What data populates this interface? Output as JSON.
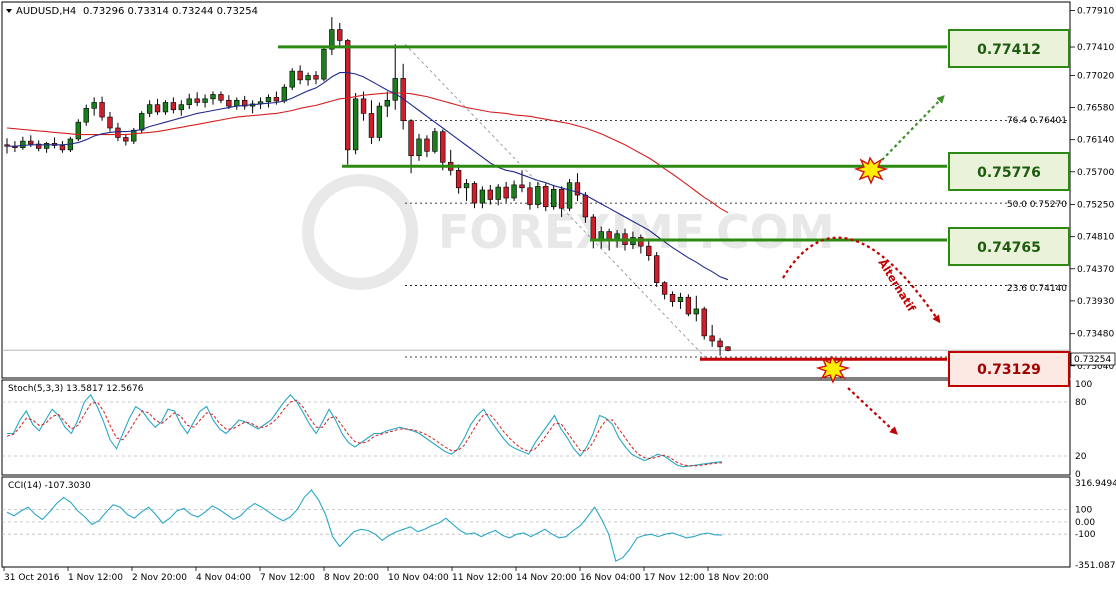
{
  "header": {
    "symbol": "AUDUSD,H4",
    "ohlc": "0.73296 0.73314 0.73244 0.73254"
  },
  "watermark": "FOREXIMF.COM",
  "current_price_label": "0.73254",
  "stoch_label": "Stoch(5,3,3) 13.5817 12.5676",
  "cci_label": "CCI(14) -107.3030",
  "fib_labels": {
    "f764": "76.4 0.76401",
    "f500": "50.0 0.75270",
    "f236": "23.6 0.74140"
  },
  "alternatif_label": "Alternatif",
  "colors": {
    "bull": "#1a7f1a",
    "bear": "#cc1e2b",
    "level_green": "#2c8a12",
    "level_red": "#c00000",
    "ma_fast": "#1f2a8a",
    "ma_slow": "#d42020",
    "stoch_main": "#2aa7c7",
    "stoch_signal": "#d42020",
    "cci_line": "#2aa7c7"
  },
  "chart_data": [
    {
      "type": "candlestick",
      "title": "AUDUSD,H4",
      "ylim": [
        0.729,
        0.78
      ],
      "y_ticks": [
        "0.77910",
        "0.77410",
        "0.77020",
        "0.76580",
        "0.76140",
        "0.75700",
        "0.75250",
        "0.74810",
        "0.74370",
        "0.73930",
        "0.73480",
        "0.73040"
      ],
      "x_ticks": [
        "31 Oct 2016",
        "1 Nov 12:00",
        "2 Nov 20:00",
        "4 Nov 04:00",
        "7 Nov 12:00",
        "8 Nov 20:00",
        "10 Nov 04:00",
        "11 Nov 12:00",
        "14 Nov 20:00",
        "16 Nov 04:00",
        "17 Nov 12:00",
        "18 Nov 20:00"
      ],
      "candles": [
        [
          0.7607,
          0.7616,
          0.7595,
          0.7605
        ],
        [
          0.7605,
          0.7612,
          0.7597,
          0.7603
        ],
        [
          0.7603,
          0.7618,
          0.76,
          0.7612
        ],
        [
          0.7612,
          0.762,
          0.7604,
          0.7608
        ],
        [
          0.7608,
          0.7613,
          0.7598,
          0.7602
        ],
        [
          0.7602,
          0.7611,
          0.7596,
          0.7609
        ],
        [
          0.7609,
          0.7617,
          0.7602,
          0.7606
        ],
        [
          0.7606,
          0.7612,
          0.7596,
          0.76
        ],
        [
          0.76,
          0.7618,
          0.7597,
          0.7615
        ],
        [
          0.7615,
          0.7642,
          0.7612,
          0.7638
        ],
        [
          0.7638,
          0.7662,
          0.7633,
          0.7657
        ],
        [
          0.7657,
          0.7672,
          0.7647,
          0.7665
        ],
        [
          0.7665,
          0.7673,
          0.764,
          0.7645
        ],
        [
          0.7645,
          0.7652,
          0.7625,
          0.763
        ],
        [
          0.763,
          0.7637,
          0.7612,
          0.7617
        ],
        [
          0.7617,
          0.7622,
          0.7606,
          0.7612
        ],
        [
          0.7612,
          0.763,
          0.7608,
          0.7627
        ],
        [
          0.7627,
          0.7653,
          0.7623,
          0.765
        ],
        [
          0.765,
          0.7668,
          0.7645,
          0.7662
        ],
        [
          0.7662,
          0.767,
          0.7648,
          0.7652
        ],
        [
          0.7652,
          0.7668,
          0.7648,
          0.7665
        ],
        [
          0.7665,
          0.7672,
          0.765,
          0.7655
        ],
        [
          0.7655,
          0.7668,
          0.7647,
          0.7662
        ],
        [
          0.7662,
          0.7677,
          0.7656,
          0.767
        ],
        [
          0.767,
          0.7679,
          0.766,
          0.7665
        ],
        [
          0.7665,
          0.7676,
          0.7658,
          0.767
        ],
        [
          0.767,
          0.768,
          0.7662,
          0.7676
        ],
        [
          0.7676,
          0.768,
          0.7664,
          0.7668
        ],
        [
          0.7668,
          0.7675,
          0.7656,
          0.766
        ],
        [
          0.766,
          0.7672,
          0.7655,
          0.7668
        ],
        [
          0.7668,
          0.7674,
          0.7655,
          0.766
        ],
        [
          0.766,
          0.7668,
          0.765,
          0.7663
        ],
        [
          0.7663,
          0.7672,
          0.7656,
          0.7666
        ],
        [
          0.7666,
          0.7676,
          0.7658,
          0.7672
        ],
        [
          0.7672,
          0.768,
          0.7662,
          0.7667
        ],
        [
          0.7667,
          0.769,
          0.7664,
          0.7686
        ],
        [
          0.7686,
          0.7712,
          0.7682,
          0.7708
        ],
        [
          0.7708,
          0.7716,
          0.769,
          0.7696
        ],
        [
          0.7696,
          0.7706,
          0.7688,
          0.7702
        ],
        [
          0.7702,
          0.7708,
          0.769,
          0.7697
        ],
        [
          0.7697,
          0.7742,
          0.7694,
          0.7738
        ],
        [
          0.7738,
          0.7782,
          0.773,
          0.7765
        ],
        [
          0.7765,
          0.7774,
          0.7742,
          0.775
        ],
        [
          0.775,
          0.7752,
          0.758,
          0.76
        ],
        [
          0.76,
          0.7678,
          0.7594,
          0.767
        ],
        [
          0.767,
          0.768,
          0.764,
          0.765
        ],
        [
          0.765,
          0.7668,
          0.7608,
          0.7617
        ],
        [
          0.7617,
          0.7665,
          0.7612,
          0.766
        ],
        [
          0.766,
          0.768,
          0.7645,
          0.7668
        ],
        [
          0.7668,
          0.7745,
          0.7655,
          0.7698
        ],
        [
          0.7698,
          0.7718,
          0.7628,
          0.764
        ],
        [
          0.764,
          0.7642,
          0.7568,
          0.7592
        ],
        [
          0.7592,
          0.7622,
          0.7585,
          0.7615
        ],
        [
          0.7615,
          0.762,
          0.759,
          0.7598
        ],
        [
          0.7598,
          0.763,
          0.7595,
          0.7625
        ],
        [
          0.7625,
          0.7628,
          0.7572,
          0.7583
        ],
        [
          0.7583,
          0.76,
          0.7565,
          0.7572
        ],
        [
          0.7572,
          0.758,
          0.754,
          0.7548
        ],
        [
          0.7548,
          0.756,
          0.753,
          0.7554
        ],
        [
          0.7554,
          0.7557,
          0.752,
          0.7527
        ],
        [
          0.7527,
          0.755,
          0.752,
          0.7545
        ],
        [
          0.7545,
          0.7552,
          0.7525,
          0.7532
        ],
        [
          0.7532,
          0.7553,
          0.7524,
          0.7549
        ],
        [
          0.7549,
          0.7556,
          0.7528,
          0.7534
        ],
        [
          0.7534,
          0.7558,
          0.753,
          0.7552
        ],
        [
          0.7552,
          0.7572,
          0.7542,
          0.7548
        ],
        [
          0.7548,
          0.7556,
          0.7518,
          0.7525
        ],
        [
          0.7525,
          0.7556,
          0.752,
          0.755
        ],
        [
          0.755,
          0.7554,
          0.7516,
          0.7522
        ],
        [
          0.7522,
          0.7552,
          0.7518,
          0.7546
        ],
        [
          0.7546,
          0.755,
          0.7508,
          0.752
        ],
        [
          0.752,
          0.756,
          0.7516,
          0.7555
        ],
        [
          0.7555,
          0.7568,
          0.753,
          0.7538
        ],
        [
          0.7538,
          0.7542,
          0.75,
          0.7508
        ],
        [
          0.7508,
          0.7512,
          0.7465,
          0.7475
        ],
        [
          0.7475,
          0.7495,
          0.7465,
          0.7488
        ],
        [
          0.7488,
          0.7492,
          0.7462,
          0.7478
        ],
        [
          0.7478,
          0.749,
          0.7466,
          0.7485
        ],
        [
          0.7485,
          0.7492,
          0.7462,
          0.747
        ],
        [
          0.747,
          0.7488,
          0.7464,
          0.748
        ],
        [
          0.748,
          0.7484,
          0.7458,
          0.7468
        ],
        [
          0.7468,
          0.7478,
          0.7448,
          0.7455
        ],
        [
          0.7455,
          0.746,
          0.7412,
          0.7418
        ],
        [
          0.7418,
          0.742,
          0.7395,
          0.7402
        ],
        [
          0.7402,
          0.7406,
          0.7385,
          0.7392
        ],
        [
          0.7392,
          0.7404,
          0.7382,
          0.7398
        ],
        [
          0.7398,
          0.7402,
          0.7372,
          0.7375
        ],
        [
          0.7375,
          0.74,
          0.7365,
          0.7382
        ],
        [
          0.7382,
          0.7385,
          0.734,
          0.7345
        ],
        [
          0.7345,
          0.736,
          0.733,
          0.7338
        ],
        [
          0.7338,
          0.7342,
          0.7318,
          0.733
        ],
        [
          0.733,
          0.7331,
          0.7324,
          0.7325
        ]
      ],
      "ma_fast": [
        0.7605,
        0.7605,
        0.7606,
        0.7607,
        0.7607,
        0.7607,
        0.7607,
        0.7607,
        0.7608,
        0.761,
        0.7614,
        0.7619,
        0.7622,
        0.7624,
        0.7625,
        0.7625,
        0.7626,
        0.7628,
        0.7632,
        0.7635,
        0.7638,
        0.7641,
        0.7644,
        0.7647,
        0.765,
        0.7652,
        0.7654,
        0.7656,
        0.7658,
        0.766,
        0.7661,
        0.7662,
        0.7663,
        0.7664,
        0.7665,
        0.7667,
        0.7671,
        0.7676,
        0.7681,
        0.7685,
        0.7692,
        0.77,
        0.7706,
        0.7706,
        0.7704,
        0.77,
        0.7694,
        0.7688,
        0.7682,
        0.7677,
        0.767,
        0.7662,
        0.7654,
        0.7646,
        0.7638,
        0.763,
        0.7622,
        0.7614,
        0.7606,
        0.7598,
        0.759,
        0.7582,
        0.7576,
        0.7572,
        0.757,
        0.7566,
        0.7562,
        0.7558,
        0.7555,
        0.7551,
        0.7548,
        0.7545,
        0.7542,
        0.7538,
        0.7532,
        0.7526,
        0.752,
        0.7514,
        0.7508,
        0.7502,
        0.7496,
        0.749,
        0.7482,
        0.7474,
        0.7466,
        0.7459,
        0.7452,
        0.7446,
        0.7439,
        0.7433,
        0.7426,
        0.7422
      ],
      "ma_slow": [
        0.763,
        0.7629,
        0.7628,
        0.7627,
        0.7626,
        0.7625,
        0.7624,
        0.7623,
        0.7622,
        0.7621,
        0.7621,
        0.7621,
        0.7621,
        0.7621,
        0.7621,
        0.7621,
        0.7622,
        0.7623,
        0.7624,
        0.7625,
        0.7627,
        0.7629,
        0.7631,
        0.7633,
        0.7635,
        0.7637,
        0.7639,
        0.7641,
        0.7643,
        0.7645,
        0.7646,
        0.7647,
        0.7648,
        0.7649,
        0.765,
        0.7652,
        0.7654,
        0.7657,
        0.7659,
        0.7661,
        0.7664,
        0.7667,
        0.767,
        0.7671,
        0.7673,
        0.7675,
        0.7676,
        0.7677,
        0.7678,
        0.7678,
        0.7678,
        0.7677,
        0.7675,
        0.7673,
        0.767,
        0.7667,
        0.7664,
        0.7661,
        0.7658,
        0.7656,
        0.7654,
        0.7652,
        0.7651,
        0.765,
        0.7648,
        0.7647,
        0.7646,
        0.7644,
        0.7642,
        0.764,
        0.7638,
        0.7636,
        0.7633,
        0.763,
        0.7626,
        0.7622,
        0.7617,
        0.7612,
        0.7607,
        0.7601,
        0.7595,
        0.7589,
        0.7582,
        0.7574,
        0.7567,
        0.7559,
        0.7551,
        0.7543,
        0.7535,
        0.7528,
        0.752,
        0.7514
      ],
      "levels": [
        {
          "label": "0.77412",
          "value": 0.77412,
          "color": "green"
        },
        {
          "label": "0.75776",
          "value": 0.75776,
          "color": "green"
        },
        {
          "label": "0.74765",
          "value": 0.74765,
          "color": "green"
        },
        {
          "label": "0.73129",
          "value": 0.73129,
          "color": "red"
        }
      ],
      "fibonacci": [
        {
          "ratio": "76.4",
          "value": 0.76401
        },
        {
          "ratio": "50.0",
          "value": 0.7527
        },
        {
          "ratio": "23.6",
          "value": 0.7414
        }
      ],
      "current_price": 0.73254
    },
    {
      "type": "line",
      "title": "Stoch(5,3,3) 13.5817 12.5676",
      "ylim": [
        0,
        100
      ],
      "y_ticks": [
        "100",
        "80",
        "20",
        "0"
      ],
      "main": [
        45,
        45,
        60,
        70,
        55,
        48,
        60,
        72,
        65,
        52,
        45,
        60,
        80,
        88,
        75,
        58,
        38,
        28,
        45,
        62,
        75,
        70,
        60,
        52,
        58,
        72,
        70,
        55,
        45,
        58,
        70,
        75,
        60,
        50,
        45,
        52,
        60,
        58,
        54,
        50,
        55,
        60,
        70,
        80,
        88,
        80,
        68,
        55,
        45,
        58,
        72,
        60,
        45,
        35,
        30,
        35,
        40,
        45,
        45,
        48,
        50,
        52,
        50,
        48,
        45,
        40,
        35,
        30,
        25,
        22,
        28,
        40,
        55,
        65,
        72,
        60,
        50,
        40,
        32,
        28,
        25,
        22,
        35,
        45,
        55,
        65,
        50,
        40,
        28,
        20,
        30,
        45,
        65,
        62,
        55,
        40,
        30,
        22,
        18,
        15,
        18,
        22,
        20,
        15,
        10,
        8,
        9,
        10,
        11,
        12,
        13,
        13.6
      ],
      "signal": [
        42,
        44,
        52,
        62,
        60,
        54,
        56,
        64,
        66,
        58,
        50,
        54,
        66,
        78,
        80,
        70,
        54,
        40,
        38,
        48,
        60,
        70,
        68,
        60,
        56,
        62,
        68,
        64,
        54,
        52,
        60,
        68,
        66,
        56,
        50,
        50,
        54,
        58,
        56,
        52,
        52,
        56,
        62,
        72,
        80,
        82,
        74,
        62,
        52,
        52,
        62,
        64,
        54,
        44,
        36,
        34,
        36,
        42,
        44,
        46,
        48,
        50,
        50,
        49,
        47,
        44,
        40,
        35,
        30,
        26,
        26,
        32,
        44,
        56,
        66,
        66,
        58,
        48,
        40,
        33,
        28,
        25,
        28,
        36,
        46,
        56,
        56,
        46,
        36,
        26,
        26,
        35,
        50,
        60,
        60,
        50,
        40,
        30,
        22,
        18,
        17,
        19,
        21,
        18,
        13,
        10,
        9,
        9,
        10,
        11,
        12,
        12.6
      ]
    },
    {
      "type": "line",
      "title": "CCI(14) -107.3030",
      "ylim": [
        -351.0879,
        316.9494
      ],
      "y_ticks": [
        "316.9494",
        "100",
        "0.00",
        "-100",
        "-351.0879"
      ],
      "values": [
        80,
        50,
        90,
        120,
        60,
        20,
        80,
        150,
        200,
        160,
        90,
        40,
        -20,
        10,
        80,
        140,
        120,
        60,
        30,
        80,
        120,
        60,
        -10,
        30,
        90,
        110,
        60,
        40,
        80,
        130,
        100,
        60,
        20,
        50,
        110,
        150,
        120,
        80,
        40,
        10,
        40,
        100,
        200,
        260,
        180,
        60,
        -120,
        -200,
        -140,
        -80,
        -60,
        -70,
        -100,
        -150,
        -110,
        -80,
        -60,
        -40,
        -80,
        -60,
        -30,
        -10,
        30,
        -20,
        -70,
        -100,
        -90,
        -120,
        -90,
        -70,
        -110,
        -130,
        -100,
        -90,
        -120,
        -90,
        -60,
        -100,
        -130,
        -120,
        -70,
        -30,
        40,
        120,
        20,
        -100,
        -320,
        -290,
        -220,
        -130,
        -110,
        -100,
        -120,
        -100,
        -90,
        -110,
        -130,
        -120,
        -100,
        -90,
        -105,
        -107.3
      ]
    }
  ]
}
